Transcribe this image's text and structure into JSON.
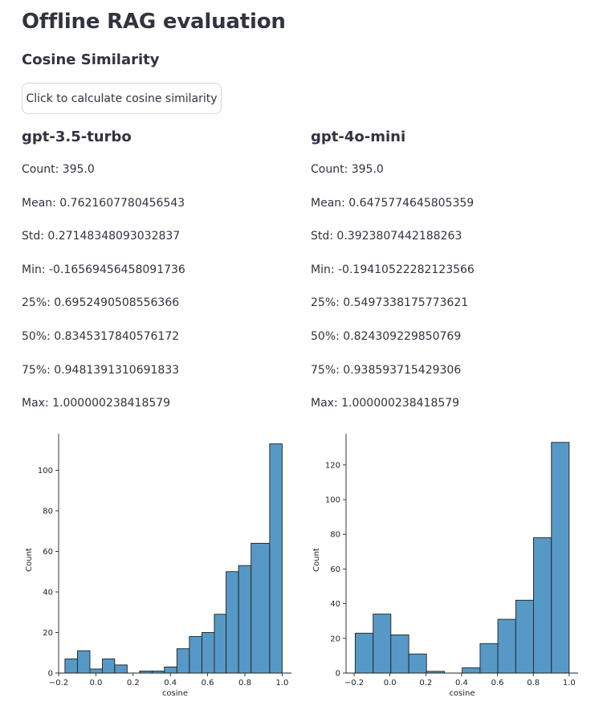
{
  "page": {
    "title": "Offline RAG evaluation",
    "section": "Cosine Similarity",
    "button_label": "Click to calculate cosine similarity"
  },
  "models": [
    {
      "name": "gpt-3.5-turbo",
      "stats": [
        "Count: 395.0",
        "Mean: 0.7621607780456543",
        "Std: 0.27148348093032837",
        "Min: -0.16569456458091736",
        "25%: 0.6952490508556366",
        "50%: 0.8345317840576172",
        "75%: 0.9481391310691833",
        "Max: 1.000000238418579"
      ]
    },
    {
      "name": "gpt-4o-mini",
      "stats": [
        "Count: 395.0",
        "Mean: 0.6475774645805359",
        "Std: 0.3923807442188263",
        "Min: -0.19410522282123566",
        "25%: 0.5497338175773621",
        "50%: 0.824309229850769",
        "75%: 0.938593715429306",
        "Max: 1.000000238418579"
      ]
    }
  ],
  "chart_data": [
    {
      "type": "bar",
      "xlabel": "cosine",
      "ylabel": "Count",
      "xlim": [
        -0.2,
        1.05
      ],
      "ylim": [
        0,
        118
      ],
      "xticks": [
        -0.2,
        0.0,
        0.2,
        0.4,
        0.6,
        0.8,
        1.0
      ],
      "xtick_labels": [
        "−0.2",
        "0.0",
        "0.2",
        "0.4",
        "0.6",
        "0.8",
        "1.0"
      ],
      "yticks": [
        0,
        20,
        40,
        60,
        80,
        100
      ],
      "bar_color": "#5799c6",
      "bins": [
        {
          "x0": -0.166,
          "x1": -0.099,
          "count": 7
        },
        {
          "x0": -0.099,
          "x1": -0.032,
          "count": 11
        },
        {
          "x0": -0.032,
          "x1": 0.035,
          "count": 2
        },
        {
          "x0": 0.035,
          "x1": 0.101,
          "count": 7
        },
        {
          "x0": 0.101,
          "x1": 0.168,
          "count": 4
        },
        {
          "x0": 0.168,
          "x1": 0.235,
          "count": 0
        },
        {
          "x0": 0.235,
          "x1": 0.302,
          "count": 1
        },
        {
          "x0": 0.302,
          "x1": 0.368,
          "count": 1
        },
        {
          "x0": 0.368,
          "x1": 0.435,
          "count": 3
        },
        {
          "x0": 0.435,
          "x1": 0.502,
          "count": 12
        },
        {
          "x0": 0.502,
          "x1": 0.569,
          "count": 18
        },
        {
          "x0": 0.569,
          "x1": 0.636,
          "count": 20
        },
        {
          "x0": 0.636,
          "x1": 0.699,
          "count": 29
        },
        {
          "x0": 0.699,
          "x1": 0.766,
          "count": 50
        },
        {
          "x0": 0.766,
          "x1": 0.833,
          "count": 53
        },
        {
          "x0": 0.833,
          "x1": 0.933,
          "count": 64
        },
        {
          "x0": 0.933,
          "x1": 1.0,
          "count": 113
        }
      ]
    },
    {
      "type": "bar",
      "xlabel": "cosine",
      "ylabel": "Count",
      "xlim": [
        -0.245,
        1.05
      ],
      "ylim": [
        0,
        138
      ],
      "xticks": [
        -0.2,
        0.0,
        0.2,
        0.4,
        0.6,
        0.8,
        1.0
      ],
      "xtick_labels": [
        "−0.2",
        "0.0",
        "0.2",
        "0.4",
        "0.6",
        "0.8",
        "1.0"
      ],
      "yticks": [
        0,
        20,
        40,
        60,
        80,
        100,
        120
      ],
      "bar_color": "#5799c6",
      "bins": [
        {
          "x0": -0.194,
          "x1": -0.094,
          "count": 23
        },
        {
          "x0": -0.094,
          "x1": 0.005,
          "count": 34
        },
        {
          "x0": 0.005,
          "x1": 0.105,
          "count": 22
        },
        {
          "x0": 0.105,
          "x1": 0.204,
          "count": 11
        },
        {
          "x0": 0.204,
          "x1": 0.304,
          "count": 1
        },
        {
          "x0": 0.304,
          "x1": 0.403,
          "count": 0
        },
        {
          "x0": 0.403,
          "x1": 0.503,
          "count": 3
        },
        {
          "x0": 0.503,
          "x1": 0.602,
          "count": 17
        },
        {
          "x0": 0.602,
          "x1": 0.702,
          "count": 31
        },
        {
          "x0": 0.702,
          "x1": 0.801,
          "count": 42
        },
        {
          "x0": 0.801,
          "x1": 0.901,
          "count": 78
        },
        {
          "x0": 0.901,
          "x1": 1.0,
          "count": 133
        }
      ]
    }
  ]
}
